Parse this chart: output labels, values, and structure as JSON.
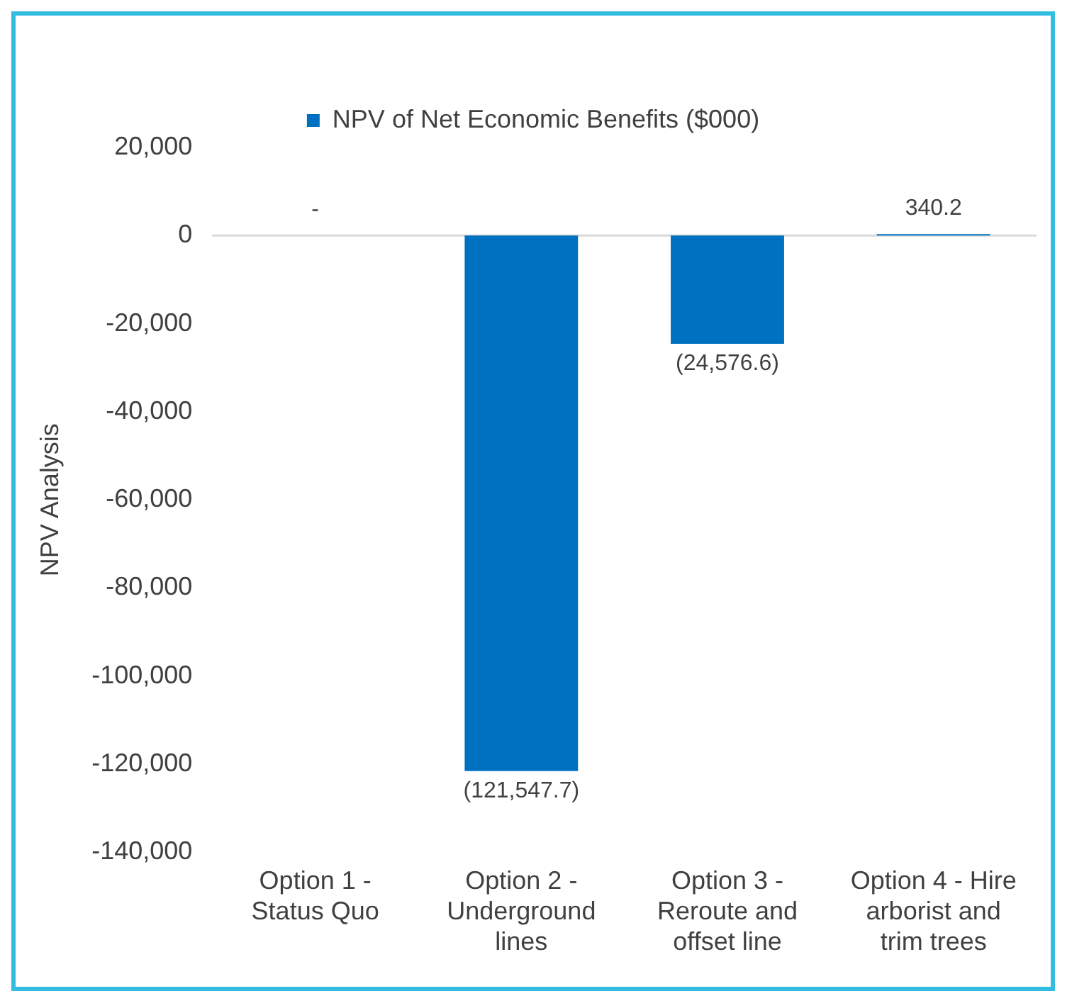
{
  "chart_data": {
    "type": "bar",
    "ylabel": "NPV Analysis",
    "categories": [
      "Option 1 - Status Quo",
      "Option 2 - Underground lines",
      "Option 3 - Reroute and offset line",
      "Option 4 - Hire arborist and trim trees"
    ],
    "series": [
      {
        "name": "NPV of Net Economic Benefits ($000)",
        "color": "#0070c0",
        "values": [
          0,
          -121547.7,
          -24576.6,
          340.2
        ],
        "value_labels": [
          "-",
          "(121,547.7)",
          "(24,576.6)",
          "340.2"
        ]
      }
    ],
    "ylim": [
      -140000,
      20000
    ],
    "yticks": [
      {
        "value": -140000,
        "label": "-140,000"
      },
      {
        "value": -120000,
        "label": "-120,000"
      },
      {
        "value": -100000,
        "label": "-100,000"
      },
      {
        "value": -80000,
        "label": "-80,000"
      },
      {
        "value": -60000,
        "label": "-60,000"
      },
      {
        "value": -40000,
        "label": "-40,000"
      },
      {
        "value": -20000,
        "label": "-20,000"
      },
      {
        "value": 0,
        "label": "0"
      },
      {
        "value": 20000,
        "label": "20,000"
      }
    ],
    "ref_lines": [
      {
        "axis": "y",
        "value": 0,
        "color": "#d9d9d9"
      }
    ],
    "grid": false,
    "legend": "top"
  }
}
